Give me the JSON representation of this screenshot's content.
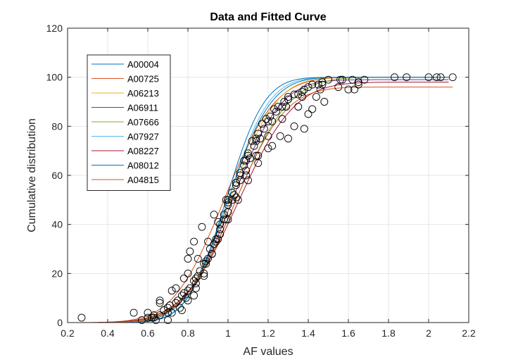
{
  "chart_data": {
    "type": "scatter",
    "title": "Data and Fitted Curve",
    "xlabel": "AF values",
    "ylabel": "Cumulative distribution",
    "xlim": [
      0.2,
      2.2
    ],
    "ylim": [
      0,
      120
    ],
    "xticks": [
      "0.2",
      "0.4",
      "0.6",
      "0.8",
      "1",
      "1.2",
      "1.4",
      "1.6",
      "1.8",
      "2",
      "2.2"
    ],
    "yticks": [
      "0",
      "20",
      "40",
      "60",
      "80",
      "100",
      "120"
    ],
    "grid": true,
    "legend_position": "top-left",
    "series": [
      {
        "name": "A00004",
        "color": "#0072BD",
        "fit": {
          "mu": 1.0,
          "sigma": 0.17,
          "max": 100,
          "xmin": 0.3,
          "xmax": 2.05
        },
        "points": [
          [
            0.57,
            1
          ],
          [
            0.63,
            2
          ],
          [
            0.7,
            4
          ],
          [
            0.76,
            6
          ],
          [
            0.8,
            9
          ],
          [
            0.84,
            14
          ],
          [
            0.88,
            20
          ],
          [
            0.92,
            28
          ],
          [
            0.96,
            36
          ],
          [
            1.0,
            45
          ],
          [
            1.03,
            52
          ],
          [
            1.06,
            60
          ],
          [
            1.1,
            68
          ],
          [
            1.14,
            75
          ],
          [
            1.19,
            83
          ],
          [
            1.25,
            88
          ],
          [
            1.33,
            93
          ],
          [
            1.42,
            97
          ],
          [
            1.5,
            99
          ]
        ]
      },
      {
        "name": "A00725",
        "color": "#D95319",
        "fit": {
          "mu": 0.98,
          "sigma": 0.2,
          "max": 100,
          "xmin": 0.27,
          "xmax": 2.1
        },
        "points": [
          [
            0.27,
            2
          ],
          [
            0.53,
            4
          ],
          [
            0.66,
            9
          ],
          [
            0.74,
            14
          ],
          [
            0.8,
            20
          ],
          [
            0.85,
            26
          ],
          [
            0.9,
            33
          ],
          [
            0.95,
            41
          ],
          [
            1.0,
            50
          ],
          [
            1.04,
            57
          ],
          [
            1.08,
            64
          ],
          [
            1.13,
            72
          ],
          [
            1.18,
            79
          ],
          [
            1.24,
            86
          ],
          [
            1.3,
            91
          ],
          [
            1.38,
            95
          ],
          [
            1.47,
            98
          ],
          [
            1.62,
            99
          ],
          [
            2.0,
            100
          ]
        ]
      },
      {
        "name": "A06213",
        "color": "#EDB120",
        "fit": {
          "mu": 1.01,
          "sigma": 0.18,
          "max": 100,
          "xmin": 0.35,
          "xmax": 2.1
        },
        "points": [
          [
            0.6,
            2
          ],
          [
            0.68,
            5
          ],
          [
            0.75,
            9
          ],
          [
            0.81,
            14
          ],
          [
            0.86,
            21
          ],
          [
            0.91,
            30
          ],
          [
            0.96,
            40
          ],
          [
            1.0,
            49
          ],
          [
            1.04,
            57
          ],
          [
            1.09,
            66
          ],
          [
            1.14,
            74
          ],
          [
            1.2,
            82
          ],
          [
            1.27,
            88
          ],
          [
            1.35,
            93
          ],
          [
            1.45,
            97
          ],
          [
            1.57,
            99
          ],
          [
            1.83,
            100
          ]
        ]
      },
      {
        "name": "A06911",
        "color": "#7E2F8E",
        "fit": {
          "mu": 1.02,
          "sigma": 0.19,
          "max": 99,
          "xmin": 0.35,
          "xmax": 2.1
        },
        "points": [
          [
            0.62,
            2
          ],
          [
            0.7,
            6
          ],
          [
            0.77,
            11
          ],
          [
            0.83,
            17
          ],
          [
            0.88,
            24
          ],
          [
            0.93,
            32
          ],
          [
            0.98,
            42
          ],
          [
            1.02,
            50
          ],
          [
            1.06,
            58
          ],
          [
            1.11,
            67
          ],
          [
            1.16,
            75
          ],
          [
            1.22,
            82
          ],
          [
            1.29,
            88
          ],
          [
            1.37,
            92
          ],
          [
            1.46,
            95
          ],
          [
            1.65,
            97
          ],
          [
            2.04,
            100
          ]
        ]
      },
      {
        "name": "A07666",
        "color": "#77AC30",
        "fit": {
          "mu": 1.04,
          "sigma": 0.21,
          "max": 100,
          "xmin": 0.35,
          "xmax": 2.1
        },
        "points": [
          [
            0.6,
            4
          ],
          [
            0.66,
            8
          ],
          [
            0.72,
            13
          ],
          [
            0.78,
            18
          ],
          [
            0.8,
            26
          ],
          [
            0.81,
            29
          ],
          [
            0.83,
            33
          ],
          [
            0.87,
            39
          ],
          [
            0.93,
            44
          ],
          [
            0.99,
            50
          ],
          [
            1.04,
            56
          ],
          [
            1.09,
            62
          ],
          [
            1.15,
            68
          ],
          [
            1.22,
            72
          ],
          [
            1.3,
            75
          ],
          [
            1.38,
            79
          ],
          [
            1.42,
            87
          ],
          [
            1.55,
            96
          ],
          [
            1.65,
            98
          ],
          [
            2.06,
            100
          ]
        ]
      },
      {
        "name": "A07927",
        "color": "#4DBEEE",
        "fit": {
          "mu": 1.0,
          "sigma": 0.16,
          "max": 100,
          "xmin": 0.35,
          "xmax": 2.1
        },
        "points": [
          [
            0.64,
            1
          ],
          [
            0.72,
            4
          ],
          [
            0.79,
            10
          ],
          [
            0.84,
            16
          ],
          [
            0.89,
            24
          ],
          [
            0.94,
            34
          ],
          [
            0.98,
            44
          ],
          [
            1.02,
            53
          ],
          [
            1.06,
            61
          ],
          [
            1.1,
            69
          ],
          [
            1.15,
            77
          ],
          [
            1.21,
            84
          ],
          [
            1.28,
            90
          ],
          [
            1.37,
            94
          ],
          [
            1.47,
            97
          ],
          [
            1.68,
            99
          ],
          [
            2.12,
            100
          ]
        ]
      },
      {
        "name": "A08227",
        "color": "#A2142F",
        "fit": {
          "mu": 1.05,
          "sigma": 0.22,
          "max": 98,
          "xmin": 0.35,
          "xmax": 2.1
        },
        "points": [
          [
            0.66,
            3
          ],
          [
            0.74,
            8
          ],
          [
            0.8,
            13
          ],
          [
            0.85,
            19
          ],
          [
            0.9,
            26
          ],
          [
            0.95,
            34
          ],
          [
            1.0,
            42
          ],
          [
            1.05,
            50
          ],
          [
            1.1,
            58
          ],
          [
            1.15,
            65
          ],
          [
            1.2,
            71
          ],
          [
            1.26,
            76
          ],
          [
            1.33,
            80
          ],
          [
            1.4,
            85
          ],
          [
            1.48,
            90
          ],
          [
            1.63,
            95
          ],
          [
            1.89,
            100
          ]
        ]
      },
      {
        "name": "A08012",
        "color": "#0072BD",
        "fit": {
          "mu": 0.99,
          "sigma": 0.15,
          "max": 100,
          "xmin": 0.35,
          "xmax": 2.1
        },
        "points": [
          [
            0.7,
            1
          ],
          [
            0.77,
            5
          ],
          [
            0.83,
            11
          ],
          [
            0.88,
            19
          ],
          [
            0.92,
            28
          ],
          [
            0.96,
            38
          ],
          [
            1.0,
            48
          ],
          [
            1.04,
            57
          ],
          [
            1.08,
            66
          ],
          [
            1.12,
            74
          ],
          [
            1.17,
            81
          ],
          [
            1.23,
            87
          ],
          [
            1.3,
            92
          ],
          [
            1.4,
            96
          ],
          [
            1.56,
            99
          ]
        ]
      },
      {
        "name": "A04815",
        "color": "#D95319",
        "fit": {
          "mu": 1.03,
          "sigma": 0.2,
          "max": 96,
          "xmin": 0.35,
          "xmax": 2.12
        },
        "points": [
          [
            0.63,
            3
          ],
          [
            0.71,
            7
          ],
          [
            0.78,
            12
          ],
          [
            0.84,
            18
          ],
          [
            0.89,
            25
          ],
          [
            0.94,
            33
          ],
          [
            0.99,
            42
          ],
          [
            1.04,
            51
          ],
          [
            1.09,
            60
          ],
          [
            1.14,
            68
          ],
          [
            1.2,
            76
          ],
          [
            1.27,
            83
          ],
          [
            1.35,
            88
          ],
          [
            1.44,
            92
          ],
          [
            1.6,
            95
          ]
        ]
      }
    ]
  }
}
